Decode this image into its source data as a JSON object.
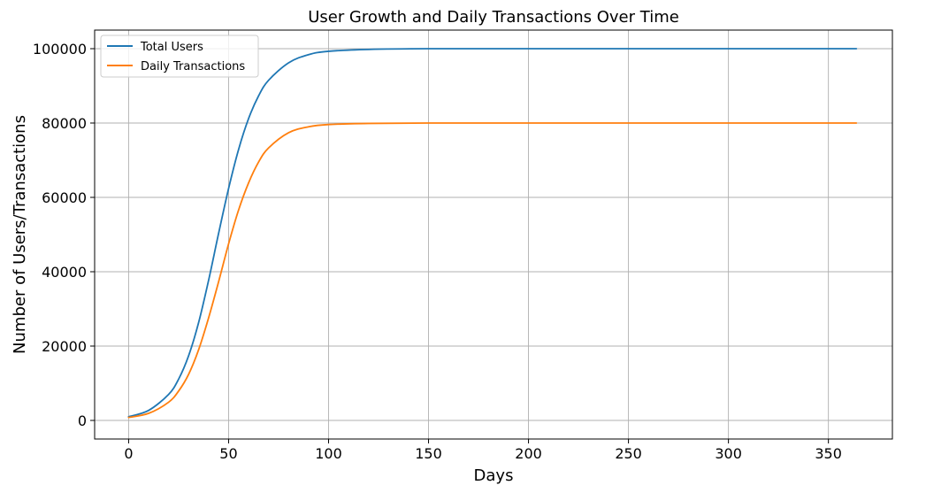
{
  "chart_data": {
    "type": "line",
    "title": "User Growth and Daily Transactions Over Time",
    "xlabel": "Days",
    "ylabel": "Number of Users/Transactions",
    "xlim": [
      -17,
      382
    ],
    "ylim": [
      -5000,
      105000
    ],
    "xticks": [
      0,
      50,
      100,
      150,
      200,
      250,
      300,
      350
    ],
    "yticks": [
      0,
      20000,
      40000,
      60000,
      80000,
      100000
    ],
    "grid": true,
    "legend_position": "top-left",
    "x": [
      0,
      10,
      20,
      25,
      30,
      35,
      40,
      45,
      50,
      55,
      60,
      65,
      70,
      80,
      90,
      100,
      120,
      150,
      200,
      250,
      300,
      364
    ],
    "series": [
      {
        "name": "Total Users",
        "color": "#1f77b4",
        "values": [
          1000,
          2700,
          7000,
          11100,
          17400,
          26300,
          37700,
          50300,
          62400,
          72900,
          81200,
          87300,
          91500,
          96200,
          98400,
          99300,
          99800,
          100000,
          100000,
          100000,
          100000,
          100000
        ]
      },
      {
        "name": "Daily Transactions",
        "color": "#ff7f0e",
        "values": [
          800,
          1900,
          4900,
          7900,
          12400,
          19000,
          27600,
          37300,
          47500,
          56600,
          63900,
          69500,
          73300,
          77400,
          79000,
          79600,
          79900,
          80000,
          80000,
          80000,
          80000,
          80000
        ]
      }
    ]
  }
}
